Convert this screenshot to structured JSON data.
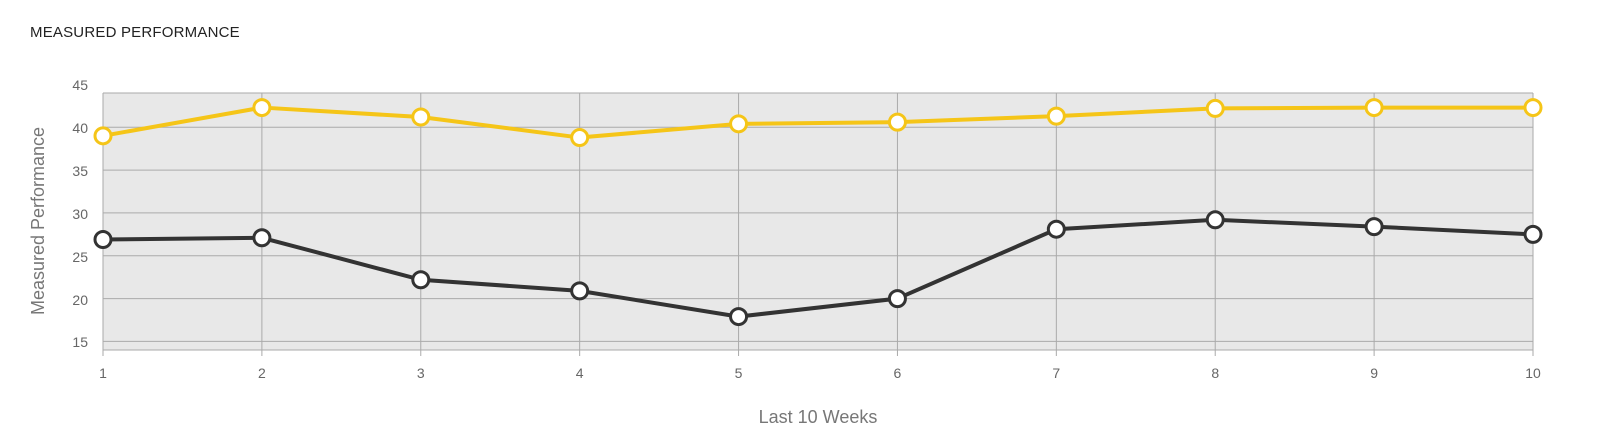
{
  "title": "MEASURED PERFORMANCE",
  "chart_data": {
    "type": "line",
    "title": "MEASURED PERFORMANCE",
    "xlabel": "Last 10 Weeks",
    "ylabel": "Measured Performance",
    "x": [
      1,
      2,
      3,
      4,
      5,
      6,
      7,
      8,
      9,
      10
    ],
    "xlim": [
      1,
      10
    ],
    "ylim": [
      14,
      44
    ],
    "yticks": [
      15,
      20,
      25,
      30,
      35,
      40,
      45
    ],
    "grid": true,
    "series": [
      {
        "color": "#F5C518",
        "values": [
          39.0,
          42.3,
          41.2,
          38.8,
          40.4,
          40.6,
          41.3,
          42.2,
          42.3,
          42.3
        ]
      },
      {
        "color": "#333333",
        "values": [
          26.9,
          27.1,
          22.2,
          20.9,
          17.9,
          20.0,
          28.1,
          29.2,
          28.4,
          27.5
        ]
      }
    ],
    "colors": {
      "plot_background": "#E8E8E8",
      "grid": "#AAAAAA"
    }
  }
}
